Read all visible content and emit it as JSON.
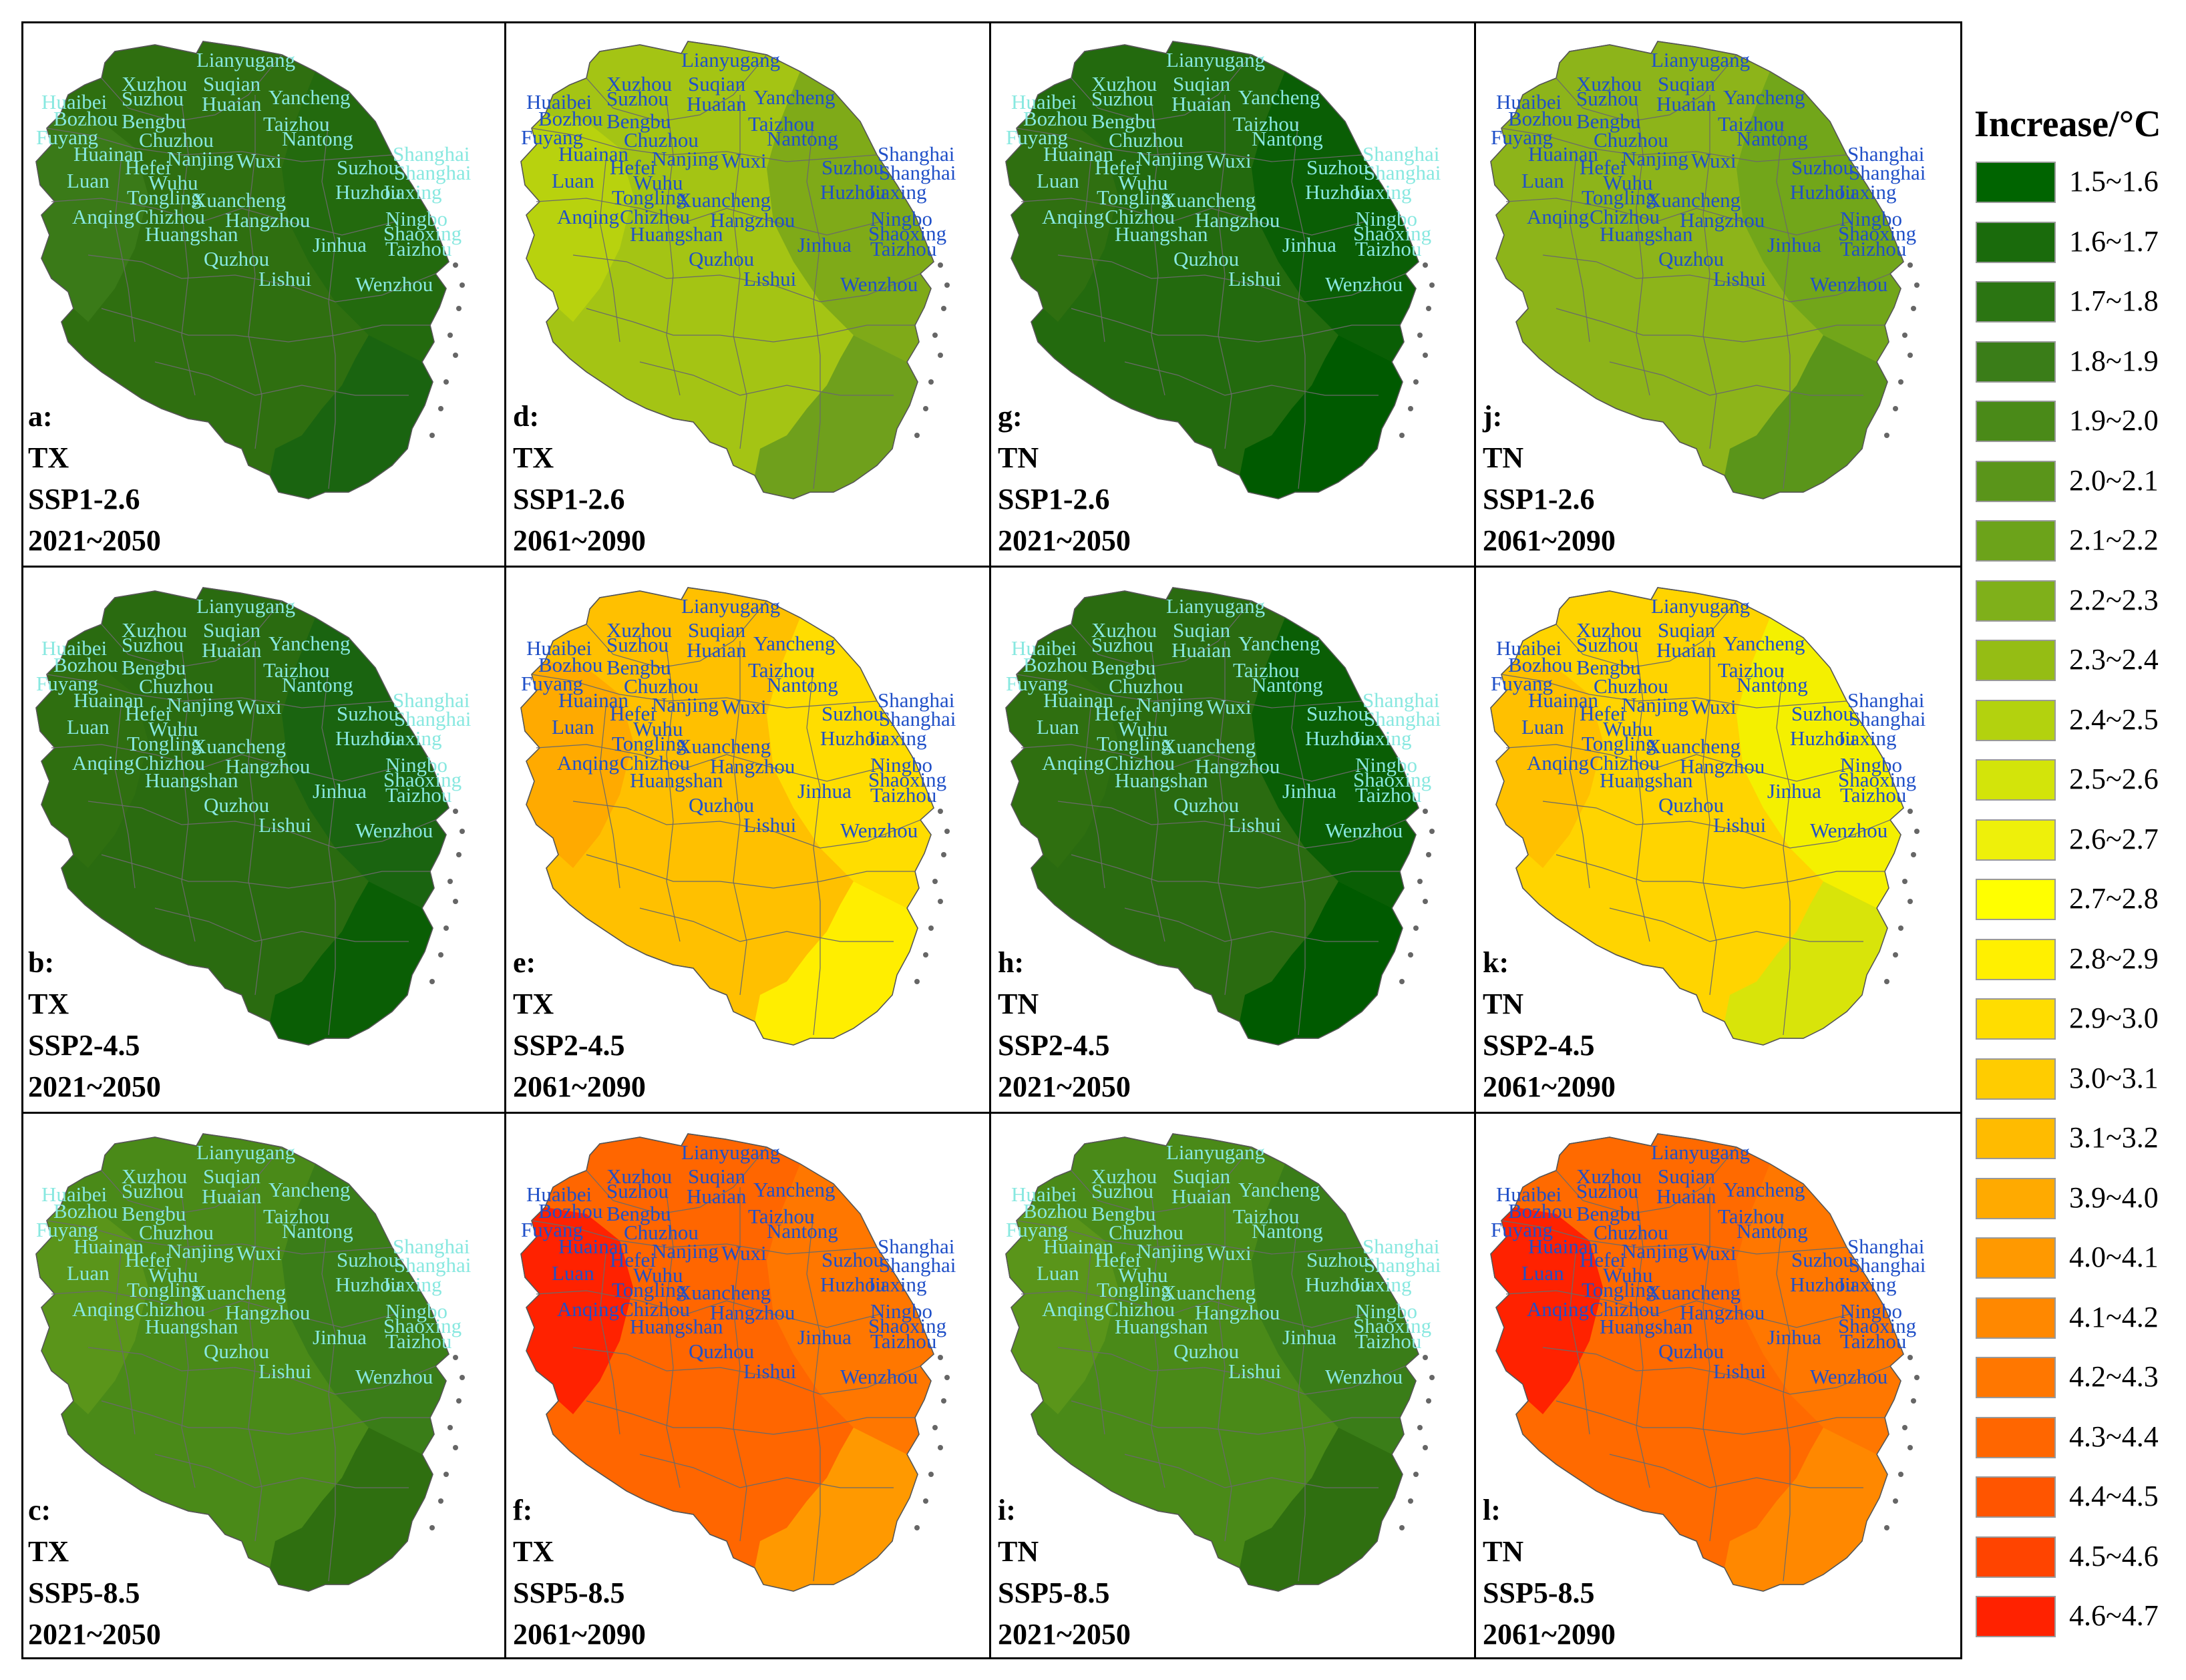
{
  "legend": {
    "title": "Increase/°C",
    "items": [
      {
        "label": "1.5~1.6",
        "color": "#006400"
      },
      {
        "label": "1.6~1.7",
        "color": "#1a6b0c"
      },
      {
        "label": "1.7~1.8",
        "color": "#2b7512"
      },
      {
        "label": "1.8~1.9",
        "color": "#3a7d18"
      },
      {
        "label": "1.9~2.0",
        "color": "#4a8a18"
      },
      {
        "label": "2.0~2.1",
        "color": "#5a951a"
      },
      {
        "label": "2.1~2.2",
        "color": "#6ca31a"
      },
      {
        "label": "2.2~2.3",
        "color": "#7fb01a"
      },
      {
        "label": "2.3~2.4",
        "color": "#95bd14"
      },
      {
        "label": "2.4~2.5",
        "color": "#b3d20e"
      },
      {
        "label": "2.5~2.6",
        "color": "#d3e40a"
      },
      {
        "label": "2.6~2.7",
        "color": "#eef00a"
      },
      {
        "label": "2.7~2.8",
        "color": "#ffff00"
      },
      {
        "label": "2.8~2.9",
        "color": "#fff000"
      },
      {
        "label": "2.9~3.0",
        "color": "#ffdd00"
      },
      {
        "label": "3.0~3.1",
        "color": "#ffcc00"
      },
      {
        "label": "3.1~3.2",
        "color": "#ffbb00"
      },
      {
        "label": "3.9~4.0",
        "color": "#ffaa00"
      },
      {
        "label": "4.0~4.1",
        "color": "#ff9900"
      },
      {
        "label": "4.1~4.2",
        "color": "#ff8800"
      },
      {
        "label": "4.2~4.3",
        "color": "#ff7700"
      },
      {
        "label": "4.3~4.4",
        "color": "#ff6600"
      },
      {
        "label": "4.4~4.5",
        "color": "#ff5500"
      },
      {
        "label": "4.5~4.6",
        "color": "#ff4400"
      },
      {
        "label": "4.6~4.7",
        "color": "#ff2200"
      }
    ]
  },
  "cities": [
    "Lianyugang",
    "Xuzhou",
    "Suqian",
    "Huaibei",
    "Suzhou",
    "Huaian",
    "Yancheng",
    "Bozhou",
    "Bengbu",
    "Taizhou",
    "Fuyang",
    "Chuzhou",
    "Nantong",
    "Huainan",
    "Nanjing",
    "Wuxi",
    "Shanghai",
    "Hefei",
    "Suzhou",
    "Shanghai",
    "Luan",
    "Wuhu",
    "Tongling",
    "Xuancheng",
    "Huzhou",
    "Jiaxing",
    "Anqing",
    "Chizhou",
    "Hangzhou",
    "Ningbo",
    "Huangshan",
    "Shaoxing",
    "Jinhua",
    "Taizhou",
    "Quzhou",
    "Lishui",
    "Wenzhou"
  ],
  "panels": [
    {
      "id": "a:",
      "variable": "TX",
      "scenario": "SSP1-2.6",
      "period": "2021~2050",
      "main_color": "#2f6f10",
      "south_color": "#1a6410",
      "east_color": "#236a0e",
      "west_color": "#3a7a18",
      "label_color": "#88e8e0"
    },
    {
      "id": "d:",
      "variable": "TX",
      "scenario": "SSP1-2.6",
      "period": "2061~2090",
      "main_color": "#a4c414",
      "south_color": "#6fa01c",
      "east_color": "#7faa18",
      "west_color": "#b8d20e",
      "label_color": "#2050c8"
    },
    {
      "id": "g:",
      "variable": "TN",
      "scenario": "SSP1-2.6",
      "period": "2021~2050",
      "main_color": "#236a0e",
      "south_color": "#005a00",
      "east_color": "#0a5e05",
      "west_color": "#2f6f10",
      "label_color": "#88e8e0"
    },
    {
      "id": "j:",
      "variable": "TN",
      "scenario": "SSP1-2.6",
      "period": "2061~2090",
      "main_color": "#8db41a",
      "south_color": "#5a951a",
      "east_color": "#72a61a",
      "west_color": "#8db41a",
      "label_color": "#2050c8"
    },
    {
      "id": "b:",
      "variable": "TX",
      "scenario": "SSP2-4.5",
      "period": "2021~2050",
      "main_color": "#2a6b10",
      "south_color": "#0a5e05",
      "east_color": "#1a6410",
      "west_color": "#2f6f10",
      "label_color": "#88e8e0"
    },
    {
      "id": "e:",
      "variable": "TX",
      "scenario": "SSP2-4.5",
      "period": "2061~2090",
      "main_color": "#ffc000",
      "south_color": "#ffee00",
      "east_color": "#ffdd00",
      "west_color": "#ffaa00",
      "label_color": "#2050c8"
    },
    {
      "id": "h:",
      "variable": "TN",
      "scenario": "SSP2-4.5",
      "period": "2021~2050",
      "main_color": "#2a6b10",
      "south_color": "#005a00",
      "east_color": "#0a5e05",
      "west_color": "#2f6f10",
      "label_color": "#88e8e0"
    },
    {
      "id": "k:",
      "variable": "TN",
      "scenario": "SSP2-4.5",
      "period": "2061~2090",
      "main_color": "#ffd400",
      "south_color": "#d8e40a",
      "east_color": "#f4f000",
      "west_color": "#ffc000",
      "label_color": "#2050c8"
    },
    {
      "id": "c:",
      "variable": "TX",
      "scenario": "SSP5-8.5",
      "period": "2021~2050",
      "main_color": "#4a8a18",
      "south_color": "#2f6f10",
      "east_color": "#3a7d18",
      "west_color": "#5a951a",
      "label_color": "#88e8e0"
    },
    {
      "id": "f:",
      "variable": "TX",
      "scenario": "SSP5-8.5",
      "period": "2061~2090",
      "main_color": "#ff6600",
      "south_color": "#ff9900",
      "east_color": "#ff7700",
      "west_color": "#ff2200",
      "label_color": "#2050c8"
    },
    {
      "id": "i:",
      "variable": "TN",
      "scenario": "SSP5-8.5",
      "period": "2021~2050",
      "main_color": "#4a8a18",
      "south_color": "#2f6f10",
      "east_color": "#3a7d18",
      "west_color": "#5a951a",
      "label_color": "#88e8e0"
    },
    {
      "id": "l:",
      "variable": "TN",
      "scenario": "SSP5-8.5",
      "period": "2061~2090",
      "main_color": "#ff6a00",
      "south_color": "#ff8800",
      "east_color": "#ff7700",
      "west_color": "#ff2200",
      "label_color": "#2050c8"
    }
  ]
}
